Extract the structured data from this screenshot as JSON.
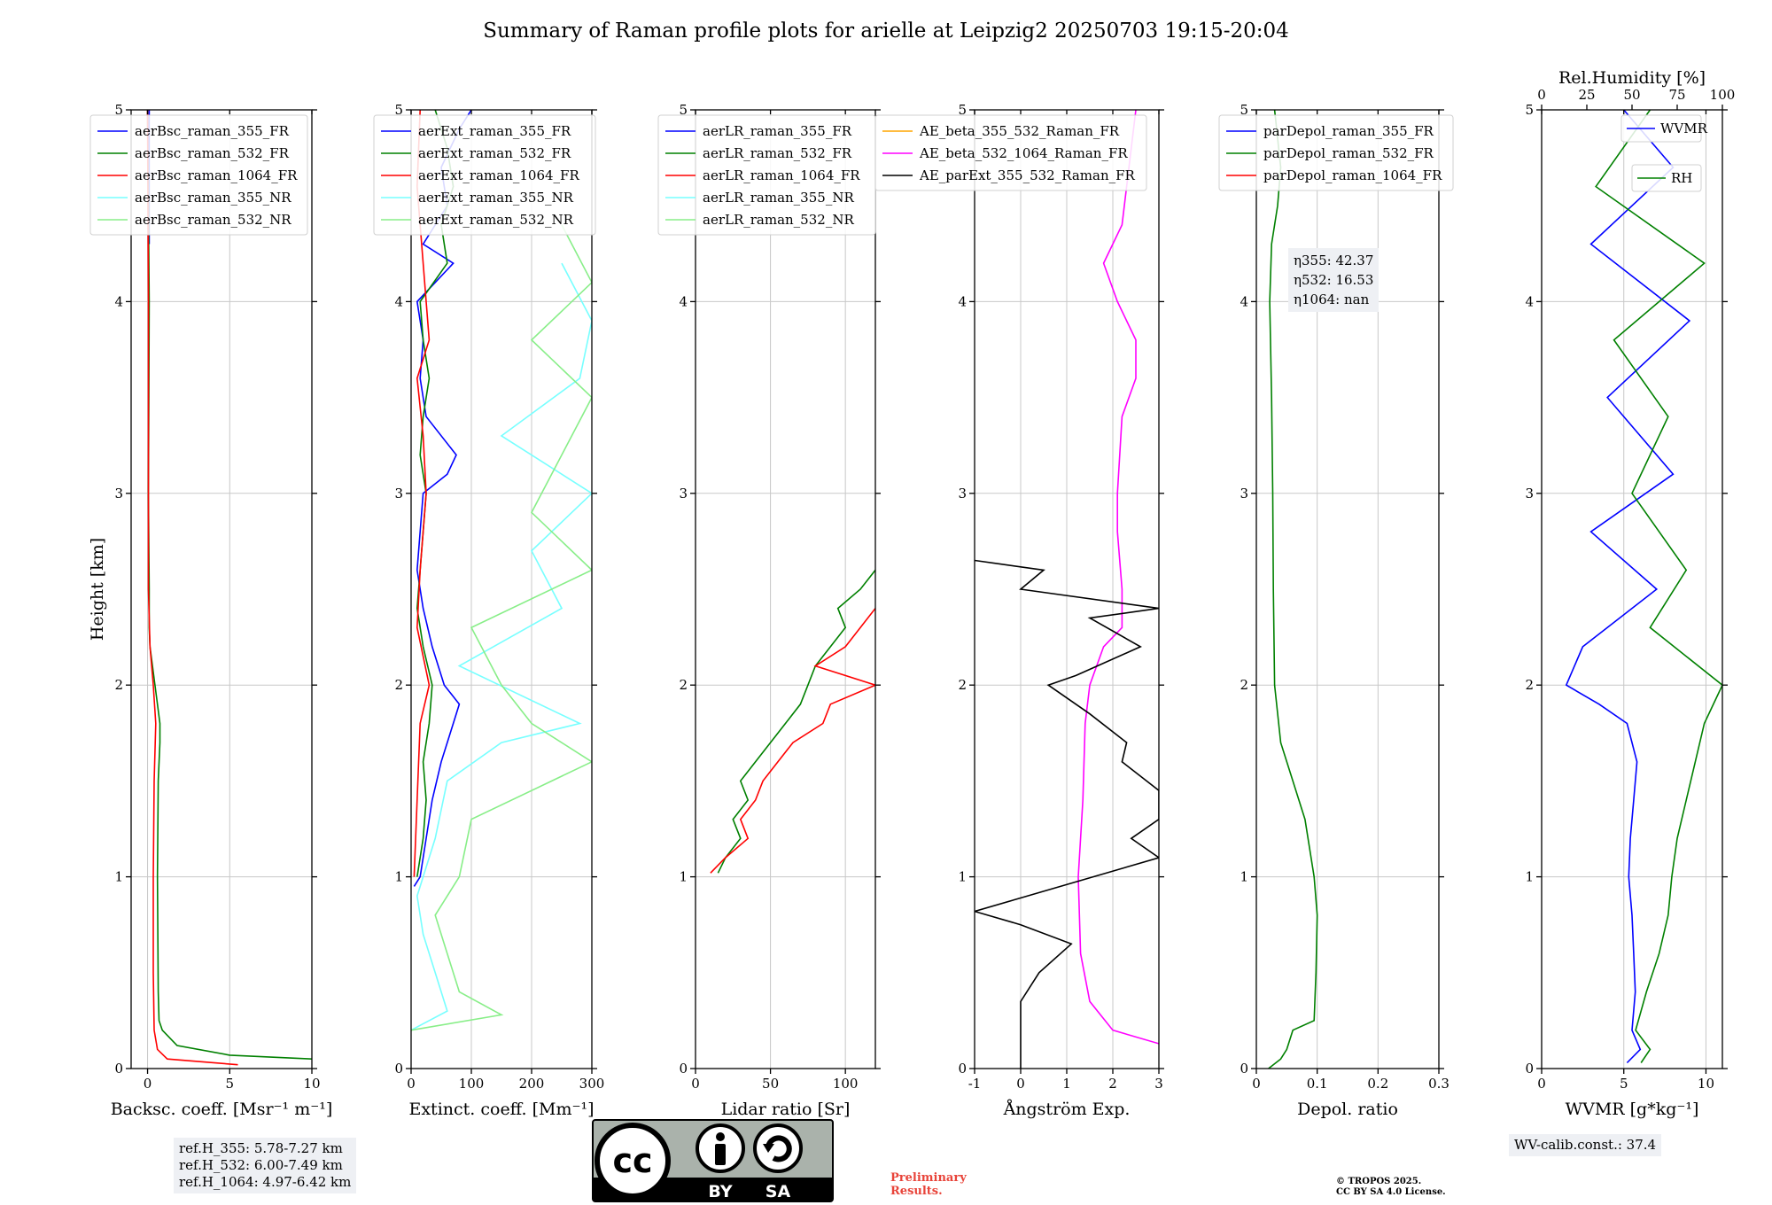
{
  "page": {
    "title": "Summary of Raman profile plots for arielle at Leipzig2 20250703 19:15-20:04"
  },
  "colors": {
    "blue": "#0000ff",
    "green": "#008000",
    "red": "#ff0000",
    "cyan": "#77ffff",
    "lightgreen": "#88ee88",
    "orange": "#ffa500",
    "magenta": "#ff00ff",
    "black": "#000000"
  },
  "info": {
    "ref_h_355": "ref.H_355: 5.78-7.27 km",
    "ref_h_532": "ref.H_532: 6.00-7.49 km",
    "ref_h_1064": "ref.H_1064: 4.97-6.42 km",
    "eta_355_label": "η355",
    "eta_355_value": ": 42.37",
    "eta_532_label": "η532",
    "eta_532_value": ": 16.53",
    "eta_1064_label": "η1064",
    "eta_1064_value": ": nan",
    "wv_calib": "WV-calib.const.: 37.4",
    "preliminary_1": "Preliminary",
    "preliminary_2": "Results.",
    "copyright_1": "© TROPOS 2025.",
    "copyright_2": "CC BY SA 4.0 License.",
    "license_by": "BY",
    "license_sa": "SA"
  },
  "chart_data": [
    {
      "type": "line",
      "id": "backscatter",
      "xlabel": "Backsc. coeff. [Msr⁻¹ m⁻¹]",
      "ylabel": "Height [km]",
      "xlim": [
        -1,
        10
      ],
      "ylim": [
        0,
        5
      ],
      "xticks": [
        0,
        5,
        10
      ],
      "yticks": [
        0,
        1,
        2,
        3,
        4,
        5
      ],
      "grid": true,
      "legend": "top-left",
      "series": [
        {
          "name": "aerBsc_raman_355_FR",
          "color": "blue",
          "y": [
            4.3,
            5.0
          ],
          "x": [
            0.1,
            0.1
          ]
        },
        {
          "name": "aerBsc_raman_532_FR",
          "color": "green",
          "y": [
            0.05,
            0.07,
            0.12,
            0.2,
            0.25,
            0.4,
            1.0,
            1.5,
            1.7,
            1.8,
            1.9,
            2.0,
            2.1,
            2.2,
            2.3,
            2.5,
            3.0,
            3.5,
            4.0,
            4.5,
            5.0
          ],
          "x": [
            10.0,
            5.0,
            1.8,
            0.9,
            0.7,
            0.65,
            0.6,
            0.65,
            0.75,
            0.75,
            0.6,
            0.45,
            0.3,
            0.15,
            0.1,
            0.1,
            0.05,
            0.08,
            0.1,
            0.05,
            0.0
          ]
        },
        {
          "name": "aerBsc_raman_1064_FR",
          "color": "red",
          "y": [
            0.02,
            0.05,
            0.1,
            0.2,
            0.5,
            1.0,
            1.5,
            1.8,
            2.0,
            2.2,
            2.5,
            3.0,
            4.0,
            5.0
          ],
          "x": [
            5.5,
            1.2,
            0.6,
            0.4,
            0.35,
            0.35,
            0.4,
            0.5,
            0.35,
            0.15,
            0.05,
            0.05,
            0.05,
            0.0
          ]
        },
        {
          "name": "aerBsc_raman_355_NR",
          "color": "cyan",
          "y": [],
          "x": []
        },
        {
          "name": "aerBsc_raman_532_NR",
          "color": "lightgreen",
          "y": [],
          "x": []
        }
      ]
    },
    {
      "type": "line",
      "id": "extinction",
      "xlabel": "Extinct. coeff. [Mm⁻¹]",
      "ylabel": "",
      "xlim": [
        0,
        300
      ],
      "ylim": [
        0,
        5
      ],
      "xticks": [
        0,
        100,
        200,
        300
      ],
      "yticks": [
        0,
        1,
        2,
        3,
        4,
        5
      ],
      "grid": true,
      "legend": "top-left",
      "series": [
        {
          "name": "aerExt_raman_355_FR",
          "color": "blue",
          "y": [
            0.95,
            1.0,
            1.2,
            1.4,
            1.6,
            1.8,
            1.9,
            2.0,
            2.2,
            2.4,
            2.6,
            2.8,
            3.0,
            3.1,
            3.2,
            3.4,
            3.6,
            3.8,
            4.0,
            4.1,
            4.2,
            4.3,
            4.5,
            4.7,
            4.9,
            5.0
          ],
          "x": [
            5,
            15,
            25,
            35,
            50,
            70,
            80,
            55,
            35,
            20,
            10,
            15,
            20,
            60,
            75,
            25,
            15,
            20,
            10,
            40,
            70,
            20,
            60,
            50,
            80,
            100
          ]
        },
        {
          "name": "aerExt_raman_532_FR",
          "color": "green",
          "y": [
            1.0,
            1.2,
            1.4,
            1.6,
            1.8,
            2.0,
            2.2,
            2.4,
            2.6,
            2.8,
            3.0,
            3.2,
            3.4,
            3.6,
            3.8,
            4.0,
            4.2,
            4.4,
            4.6,
            4.8,
            5.0
          ],
          "x": [
            10,
            20,
            25,
            20,
            30,
            35,
            20,
            10,
            15,
            20,
            25,
            15,
            20,
            30,
            20,
            15,
            60,
            50,
            70,
            60,
            40
          ]
        },
        {
          "name": "aerExt_raman_1064_FR",
          "color": "red",
          "y": [
            1.0,
            1.4,
            1.8,
            2.0,
            2.3,
            2.6,
            3.0,
            3.3,
            3.6,
            3.8,
            4.2,
            4.6,
            5.0
          ],
          "x": [
            5,
            10,
            15,
            30,
            10,
            15,
            25,
            20,
            10,
            30,
            20,
            10,
            15
          ]
        },
        {
          "name": "aerExt_raman_355_NR",
          "color": "cyan",
          "y": [
            0.2,
            0.3,
            0.5,
            0.7,
            0.9,
            1.2,
            1.5,
            1.7,
            1.8,
            2.1,
            2.4,
            2.7,
            3.0,
            3.3,
            3.6,
            3.9,
            4.2
          ],
          "x": [
            0,
            60,
            40,
            20,
            10,
            40,
            60,
            150,
            280,
            80,
            250,
            200,
            300,
            150,
            280,
            300,
            250
          ]
        },
        {
          "name": "aerExt_raman_532_NR",
          "color": "lightgreen",
          "y": [
            0.2,
            0.28,
            0.4,
            0.6,
            0.8,
            1.0,
            1.3,
            1.6,
            1.8,
            2.0,
            2.3,
            2.6,
            2.9,
            3.2,
            3.5,
            3.8,
            4.1,
            4.4
          ],
          "x": [
            0,
            150,
            80,
            60,
            40,
            80,
            100,
            300,
            200,
            150,
            100,
            300,
            200,
            250,
            300,
            200,
            300,
            250
          ]
        }
      ]
    },
    {
      "type": "line",
      "id": "lidar_ratio",
      "xlabel": "Lidar ratio [Sr]",
      "ylabel": "",
      "xlim": [
        0,
        120
      ],
      "ylim": [
        0,
        5
      ],
      "xticks": [
        0,
        50,
        100
      ],
      "yticks": [
        0,
        1,
        2,
        3,
        4,
        5
      ],
      "grid": true,
      "legend": "top-left",
      "series": [
        {
          "name": "aerLR_raman_355_FR",
          "color": "blue",
          "y": [],
          "x": []
        },
        {
          "name": "aerLR_raman_532_FR",
          "color": "green",
          "y": [
            1.02,
            1.1,
            1.2,
            1.3,
            1.4,
            1.5,
            1.6,
            1.7,
            1.8,
            1.9,
            2.0,
            2.1,
            2.2,
            2.3,
            2.4,
            2.5,
            2.6
          ],
          "x": [
            15,
            20,
            30,
            25,
            35,
            30,
            40,
            50,
            60,
            70,
            75,
            80,
            90,
            100,
            95,
            110,
            120
          ]
        },
        {
          "name": "aerLR_raman_1064_FR",
          "color": "red",
          "y": [
            1.02,
            1.1,
            1.2,
            1.3,
            1.4,
            1.5,
            1.6,
            1.7,
            1.8,
            1.9,
            2.0,
            2.1,
            2.2,
            2.4
          ],
          "x": [
            10,
            20,
            35,
            30,
            40,
            45,
            55,
            65,
            85,
            90,
            120,
            80,
            100,
            120
          ]
        },
        {
          "name": "aerLR_raman_355_NR",
          "color": "cyan",
          "y": [],
          "x": []
        },
        {
          "name": "aerLR_raman_532_NR",
          "color": "lightgreen",
          "y": [],
          "x": []
        }
      ]
    },
    {
      "type": "line",
      "id": "angstrom",
      "xlabel": "Ångström Exp.",
      "ylabel": "",
      "xlim": [
        -1,
        3
      ],
      "ylim": [
        0,
        5
      ],
      "xticks": [
        -1,
        0,
        1,
        2,
        3
      ],
      "yticks": [
        0,
        1,
        2,
        3,
        4,
        5
      ],
      "grid": true,
      "legend": "top-left",
      "series": [
        {
          "name": "AE_beta_355_532_Raman_FR",
          "color": "orange",
          "y": [],
          "x": []
        },
        {
          "name": "AE_beta_532_1064_Raman_FR",
          "color": "magenta",
          "y": [
            0.13,
            0.2,
            0.35,
            0.6,
            1.0,
            1.4,
            1.8,
            2.0,
            2.2,
            2.3,
            2.5,
            2.8,
            3.0,
            3.4,
            3.6,
            3.8,
            4.0,
            4.2,
            4.4,
            4.8,
            5.0
          ],
          "x": [
            3.0,
            2.0,
            1.5,
            1.3,
            1.25,
            1.35,
            1.4,
            1.5,
            1.8,
            2.2,
            2.2,
            2.1,
            2.1,
            2.2,
            2.5,
            2.5,
            2.1,
            1.8,
            2.2,
            2.4,
            2.5
          ]
        },
        {
          "name": "AE_parExt_355_532_Raman_FR",
          "color": "black",
          "y": [
            0.0,
            0.35,
            0.5,
            0.65,
            0.75,
            0.82,
            1.1,
            1.2,
            1.3,
            1.45,
            1.6,
            1.7,
            1.85,
            2.0,
            2.05,
            2.2,
            2.35,
            2.4,
            2.5,
            2.6,
            2.65
          ],
          "x": [
            0.0,
            0.0,
            0.4,
            1.1,
            0.0,
            -1.0,
            3.0,
            2.4,
            3.0,
            3.0,
            2.2,
            2.3,
            1.5,
            0.6,
            1.2,
            2.6,
            1.5,
            3.0,
            0.0,
            0.5,
            -1.0
          ]
        }
      ]
    },
    {
      "type": "line",
      "id": "depolarization",
      "xlabel": "Depol. ratio",
      "ylabel": "",
      "xlim": [
        0,
        0.3
      ],
      "ylim": [
        0,
        5
      ],
      "xticks": [
        0.0,
        0.1,
        0.2,
        0.3
      ],
      "yticks": [
        0,
        1,
        2,
        3,
        4,
        5
      ],
      "grid": true,
      "legend": "top-left",
      "series": [
        {
          "name": "parDepol_raman_355_FR",
          "color": "blue",
          "y": [],
          "x": []
        },
        {
          "name": "parDepol_raman_532_FR",
          "color": "green",
          "y": [
            0.0,
            0.05,
            0.1,
            0.2,
            0.25,
            0.5,
            0.8,
            1.0,
            1.3,
            1.5,
            1.7,
            2.0,
            2.5,
            3.0,
            3.5,
            4.0,
            4.3,
            4.5,
            4.7,
            5.0
          ],
          "x": [
            0.02,
            0.04,
            0.05,
            0.06,
            0.095,
            0.098,
            0.1,
            0.095,
            0.08,
            0.06,
            0.04,
            0.03,
            0.028,
            0.027,
            0.025,
            0.022,
            0.025,
            0.035,
            0.04,
            0.03
          ]
        },
        {
          "name": "parDepol_raman_1064_FR",
          "color": "red",
          "y": [],
          "x": []
        }
      ]
    },
    {
      "type": "line",
      "id": "water_vapor",
      "xlabel": "WVMR [g*kg⁻¹]",
      "ylabel": "",
      "top_xlabel": "Rel.Humidity [%]",
      "xlim": [
        0,
        11
      ],
      "ylim": [
        0,
        5
      ],
      "top_xlim": [
        0,
        100
      ],
      "xticks": [
        0,
        5,
        10
      ],
      "top_xticks": [
        0,
        25,
        50,
        75,
        100
      ],
      "yticks": [
        0,
        1,
        2,
        3,
        4,
        5
      ],
      "grid": true,
      "legend": "top-right",
      "series": [
        {
          "name": "WVMR",
          "color": "blue",
          "y": [
            0.03,
            0.1,
            0.2,
            0.4,
            0.6,
            0.8,
            1.0,
            1.2,
            1.4,
            1.6,
            1.8,
            1.9,
            2.0,
            2.2,
            2.5,
            2.8,
            3.1,
            3.5,
            3.9,
            4.3,
            4.7,
            5.0
          ],
          "x": [
            5.2,
            6.0,
            5.5,
            5.7,
            5.6,
            5.5,
            5.3,
            5.4,
            5.6,
            5.8,
            5.2,
            3.5,
            1.5,
            2.5,
            7.0,
            3.0,
            8.0,
            4.0,
            9.0,
            3.0,
            8.0,
            5.0
          ]
        },
        {
          "name": "RH",
          "color": "green",
          "y": [
            0.03,
            0.1,
            0.2,
            0.4,
            0.6,
            0.8,
            1.0,
            1.2,
            1.4,
            1.6,
            1.8,
            2.0,
            2.3,
            2.6,
            3.0,
            3.4,
            3.8,
            4.2,
            4.6,
            5.0
          ],
          "x": [
            55,
            60,
            52,
            58,
            65,
            70,
            72,
            75,
            80,
            85,
            90,
            100,
            60,
            80,
            50,
            70,
            40,
            90,
            30,
            60
          ]
        }
      ]
    }
  ]
}
